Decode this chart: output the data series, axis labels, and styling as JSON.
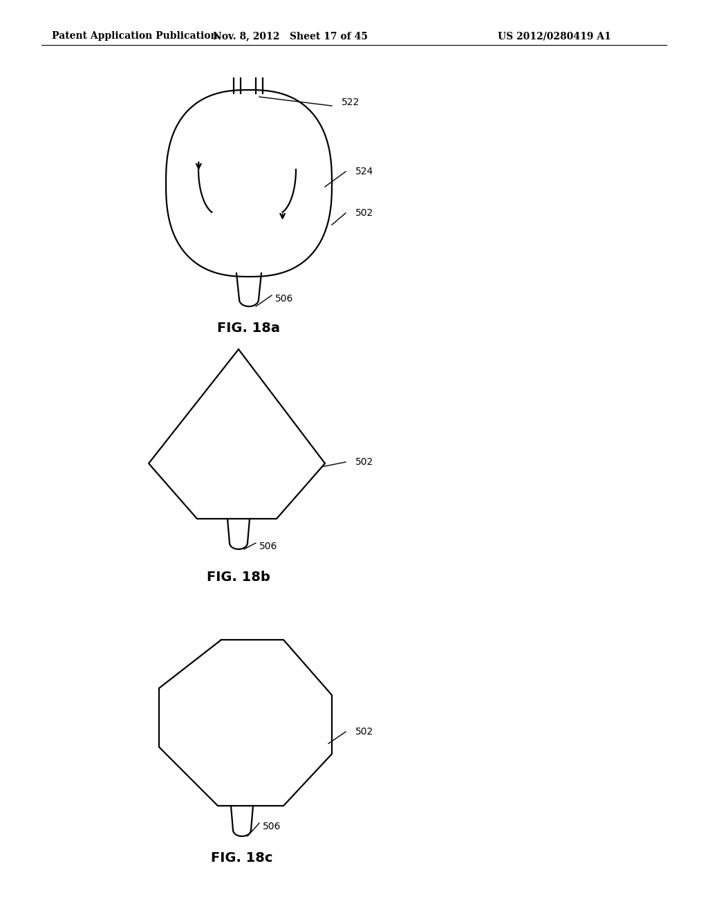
{
  "title_left": "Patent Application Publication",
  "title_mid": "Nov. 8, 2012   Sheet 17 of 45",
  "title_right": "US 2012/0280419 A1",
  "fig_labels": [
    "FIG. 18a",
    "FIG. 18b",
    "FIG. 18c"
  ],
  "bg_color": "#ffffff",
  "line_color": "#000000",
  "fig_label_fontsize": 14,
  "header_fontsize": 10
}
